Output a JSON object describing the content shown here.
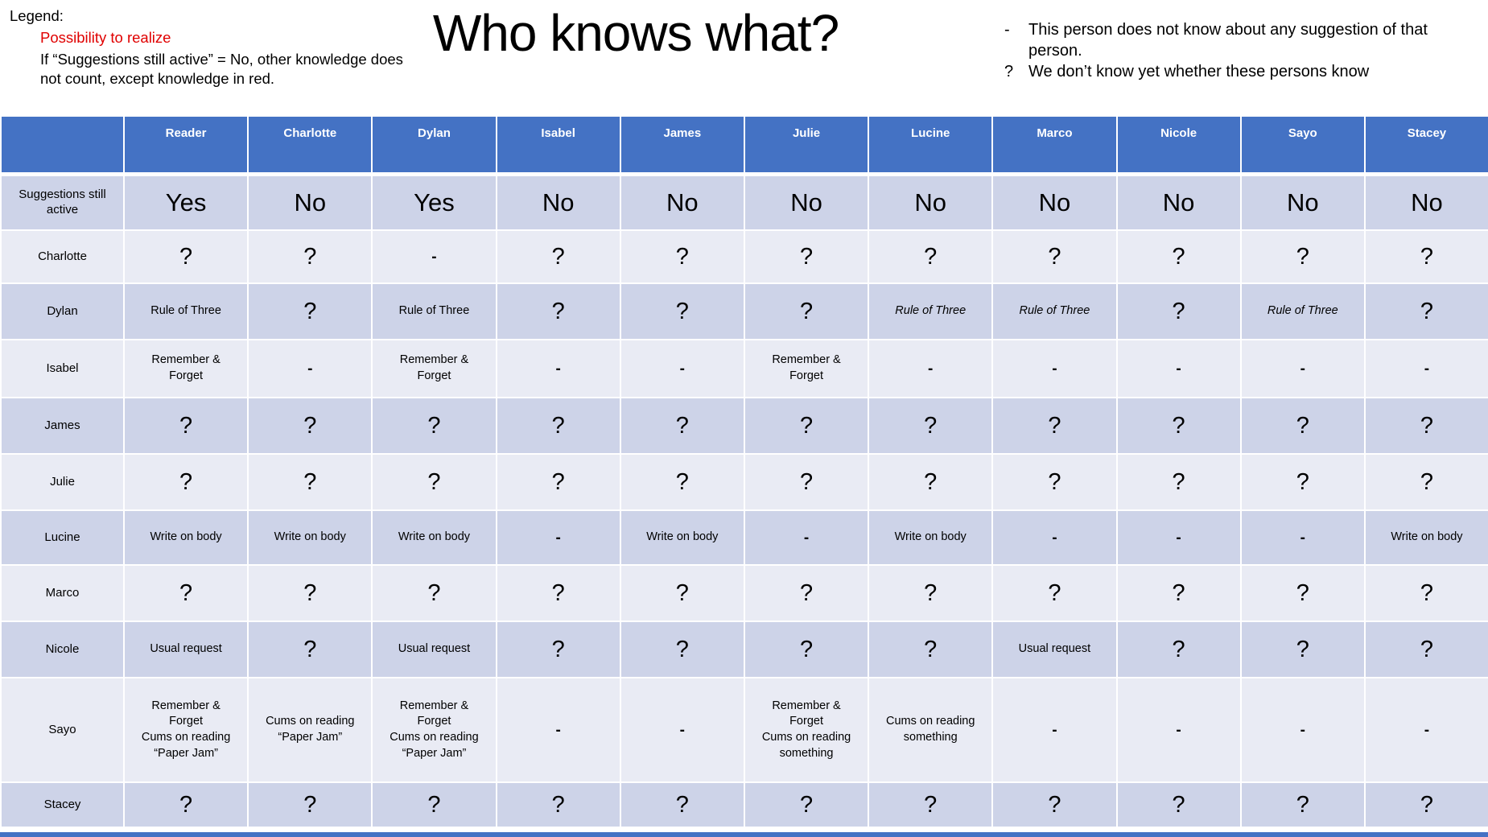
{
  "title": "Who knows what?",
  "legend": {
    "heading": "Legend:",
    "red_item": "Possibility to realize",
    "note": "If “Suggestions still active” = No, other knowledge does not count, except knowledge in red."
  },
  "notes": [
    {
      "bullet": "-",
      "text": "This person does not know about any suggestion of that person."
    },
    {
      "bullet": "?",
      "text": "We don’t know yet whether these persons know"
    }
  ],
  "colors": {
    "header_blue": "#4472C4",
    "band_dark": "#CDD3E8",
    "band_light": "#E9EBF4",
    "red": "#E00000",
    "header_text": "#FFFFFF",
    "body_text": "#000000"
  },
  "table": {
    "header": [
      "",
      "Reader",
      "Charlotte",
      "Dylan",
      "Isabel",
      "James",
      "Julie",
      "Lucine",
      "Marco",
      "Nicole",
      "Sayo",
      "Stacey"
    ],
    "rows": [
      {
        "label": "Suggestions still active",
        "cells": [
          {
            "t": "Yes",
            "s": "big"
          },
          {
            "t": "No",
            "s": "big"
          },
          {
            "t": "Yes",
            "s": "big"
          },
          {
            "t": "No",
            "s": "big"
          },
          {
            "t": "No",
            "s": "big"
          },
          {
            "t": "No",
            "s": "big"
          },
          {
            "t": "No",
            "s": "big"
          },
          {
            "t": "No",
            "s": "big"
          },
          {
            "t": "No",
            "s": "big"
          },
          {
            "t": "No",
            "s": "big"
          },
          {
            "t": "No",
            "s": "big"
          }
        ]
      },
      {
        "label": "Charlotte",
        "cells": [
          {
            "t": "?",
            "s": "q"
          },
          {
            "t": "?",
            "s": "q"
          },
          {
            "t": "-",
            "s": "dash"
          },
          {
            "t": "?",
            "s": "q"
          },
          {
            "t": "?",
            "s": "q"
          },
          {
            "t": "?",
            "s": "q"
          },
          {
            "t": "?",
            "s": "q"
          },
          {
            "t": "?",
            "s": "q"
          },
          {
            "t": "?",
            "s": "q"
          },
          {
            "t": "?",
            "s": "q"
          },
          {
            "t": "?",
            "s": "q"
          }
        ]
      },
      {
        "label": "Dylan",
        "cells": [
          {
            "t": "Rule of Three",
            "s": "txt"
          },
          {
            "t": "?",
            "s": "q"
          },
          {
            "t": "Rule of Three",
            "s": "txt"
          },
          {
            "t": "?",
            "s": "q"
          },
          {
            "t": "?",
            "s": "q"
          },
          {
            "t": "?",
            "s": "q"
          },
          {
            "t": "Rule of Three",
            "s": "red"
          },
          {
            "t": "Rule of Three",
            "s": "red"
          },
          {
            "t": "?",
            "s": "q"
          },
          {
            "t": "Rule of Three",
            "s": "red"
          },
          {
            "t": "?",
            "s": "q"
          }
        ]
      },
      {
        "label": "Isabel",
        "cells": [
          {
            "t": "Remember &\nForget",
            "s": "txt"
          },
          {
            "t": "-",
            "s": "dash"
          },
          {
            "t": "Remember &\nForget",
            "s": "txt"
          },
          {
            "t": "-",
            "s": "dash"
          },
          {
            "t": "-",
            "s": "dash"
          },
          {
            "t": "Remember &\nForget",
            "s": "txt"
          },
          {
            "t": "-",
            "s": "dash"
          },
          {
            "t": "-",
            "s": "dash"
          },
          {
            "t": "-",
            "s": "dash"
          },
          {
            "t": "-",
            "s": "dash"
          },
          {
            "t": "-",
            "s": "dash"
          }
        ]
      },
      {
        "label": "James",
        "cells": [
          {
            "t": "?",
            "s": "q"
          },
          {
            "t": "?",
            "s": "q"
          },
          {
            "t": "?",
            "s": "q"
          },
          {
            "t": "?",
            "s": "q"
          },
          {
            "t": "?",
            "s": "q"
          },
          {
            "t": "?",
            "s": "q"
          },
          {
            "t": "?",
            "s": "q"
          },
          {
            "t": "?",
            "s": "q"
          },
          {
            "t": "?",
            "s": "q"
          },
          {
            "t": "?",
            "s": "q"
          },
          {
            "t": "?",
            "s": "q"
          }
        ]
      },
      {
        "label": "Julie",
        "cells": [
          {
            "t": "?",
            "s": "q"
          },
          {
            "t": "?",
            "s": "q"
          },
          {
            "t": "?",
            "s": "q"
          },
          {
            "t": "?",
            "s": "q"
          },
          {
            "t": "?",
            "s": "q"
          },
          {
            "t": "?",
            "s": "q"
          },
          {
            "t": "?",
            "s": "q"
          },
          {
            "t": "?",
            "s": "q"
          },
          {
            "t": "?",
            "s": "q"
          },
          {
            "t": "?",
            "s": "q"
          },
          {
            "t": "?",
            "s": "q"
          }
        ]
      },
      {
        "label": "Lucine",
        "cells": [
          {
            "t": "Write on body",
            "s": "txt"
          },
          {
            "t": "Write on body",
            "s": "txt"
          },
          {
            "t": "Write on body",
            "s": "txt"
          },
          {
            "t": "-",
            "s": "dash"
          },
          {
            "t": "Write on body",
            "s": "txt"
          },
          {
            "t": "-",
            "s": "dash"
          },
          {
            "t": "Write on body",
            "s": "txt"
          },
          {
            "t": "-",
            "s": "dash"
          },
          {
            "t": "-",
            "s": "dash"
          },
          {
            "t": "-",
            "s": "dash"
          },
          {
            "t": "Write on body",
            "s": "txt"
          }
        ]
      },
      {
        "label": "Marco",
        "cells": [
          {
            "t": "?",
            "s": "q"
          },
          {
            "t": "?",
            "s": "q"
          },
          {
            "t": "?",
            "s": "q"
          },
          {
            "t": "?",
            "s": "q"
          },
          {
            "t": "?",
            "s": "q"
          },
          {
            "t": "?",
            "s": "q"
          },
          {
            "t": "?",
            "s": "q"
          },
          {
            "t": "?",
            "s": "q"
          },
          {
            "t": "?",
            "s": "q"
          },
          {
            "t": "?",
            "s": "q"
          },
          {
            "t": "?",
            "s": "q"
          }
        ]
      },
      {
        "label": "Nicole",
        "cells": [
          {
            "t": "Usual request",
            "s": "txt"
          },
          {
            "t": "?",
            "s": "q"
          },
          {
            "t": "Usual request",
            "s": "txt"
          },
          {
            "t": "?",
            "s": "q"
          },
          {
            "t": "?",
            "s": "q"
          },
          {
            "t": "?",
            "s": "q"
          },
          {
            "t": "?",
            "s": "q"
          },
          {
            "t": "Usual request",
            "s": "txt"
          },
          {
            "t": "?",
            "s": "q"
          },
          {
            "t": "?",
            "s": "q"
          },
          {
            "t": "?",
            "s": "q"
          }
        ]
      },
      {
        "label": "Sayo",
        "cells": [
          {
            "t": "Remember &\nForget\nCums on reading\n“Paper Jam”",
            "s": "txt"
          },
          {
            "t": "Cums on reading\n“Paper Jam”",
            "s": "txt"
          },
          {
            "t": "Remember &\nForget\nCums on reading\n“Paper Jam”",
            "s": "txt"
          },
          {
            "t": "-",
            "s": "dash"
          },
          {
            "t": "-",
            "s": "dash"
          },
          {
            "t": "Remember &\nForget\nCums on reading\nsomething",
            "s": "txt"
          },
          {
            "t": "Cums on reading\nsomething",
            "s": "txt"
          },
          {
            "t": "-",
            "s": "dash"
          },
          {
            "t": "-",
            "s": "dash"
          },
          {
            "t": "-",
            "s": "dash"
          },
          {
            "t": "-",
            "s": "dash"
          }
        ]
      },
      {
        "label": "Stacey",
        "cells": [
          {
            "t": "?",
            "s": "q"
          },
          {
            "t": "?",
            "s": "q"
          },
          {
            "t": "?",
            "s": "q"
          },
          {
            "t": "?",
            "s": "q"
          },
          {
            "t": "?",
            "s": "q"
          },
          {
            "t": "?",
            "s": "q"
          },
          {
            "t": "?",
            "s": "q"
          },
          {
            "t": "?",
            "s": "q"
          },
          {
            "t": "?",
            "s": "q"
          },
          {
            "t": "?",
            "s": "q"
          },
          {
            "t": "?",
            "s": "q"
          }
        ]
      }
    ]
  }
}
